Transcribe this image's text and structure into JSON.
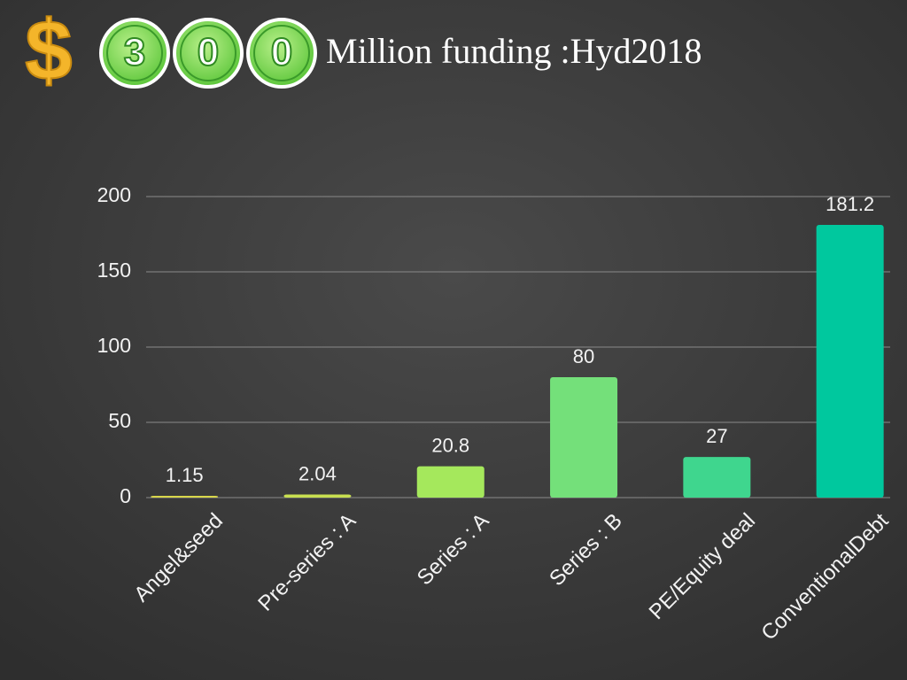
{
  "chart_data": {
    "type": "bar",
    "title_symbol": "$",
    "title_digits": [
      "3",
      "0",
      "0"
    ],
    "title": "Million funding :Hyd2018",
    "categories": [
      "Angel&seed",
      "Pre-series : A",
      "Series : A",
      "Series : B",
      "PE/Equity deal",
      "ConventionalDebt"
    ],
    "values": [
      1.15,
      2.04,
      20.8,
      80,
      27,
      181.2
    ],
    "colors": [
      "#d8d64a",
      "#c8df50",
      "#a5e85c",
      "#74e07a",
      "#3fd68e",
      "#00c89e"
    ],
    "ylim": [
      0,
      200
    ],
    "yticks": [
      0,
      50,
      100,
      150,
      200
    ],
    "grid": true
  }
}
